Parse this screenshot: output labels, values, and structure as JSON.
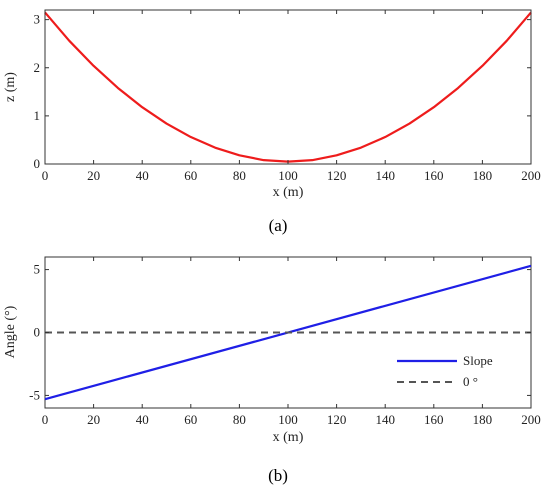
{
  "chart_data": [
    {
      "type": "line",
      "caption": "(a)",
      "xlabel": "x (m)",
      "ylabel": "z (m)",
      "xlim": [
        0,
        200
      ],
      "ylim": [
        0,
        3.2
      ],
      "x_ticks": [
        0,
        20,
        40,
        60,
        80,
        100,
        120,
        140,
        160,
        180,
        200
      ],
      "y_ticks": [
        0,
        1,
        2,
        3
      ],
      "grid": false,
      "series": [
        {
          "color": "#ee1c1c",
          "style": "solid",
          "x": [
            0,
            10,
            20,
            30,
            40,
            50,
            60,
            70,
            80,
            90,
            100,
            110,
            120,
            130,
            140,
            150,
            160,
            170,
            180,
            190,
            200
          ],
          "y": [
            3.15,
            2.56,
            2.04,
            1.58,
            1.18,
            0.84,
            0.56,
            0.34,
            0.18,
            0.08,
            0.05,
            0.08,
            0.18,
            0.34,
            0.56,
            0.84,
            1.18,
            1.58,
            2.04,
            2.56,
            3.15
          ]
        }
      ]
    },
    {
      "type": "line",
      "caption": "(b)",
      "xlabel": "x (m)",
      "ylabel": "Angle (°)",
      "xlim": [
        0,
        200
      ],
      "ylim": [
        -6,
        6
      ],
      "x_ticks": [
        0,
        20,
        40,
        60,
        80,
        100,
        120,
        140,
        160,
        180,
        200
      ],
      "y_ticks": [
        -5,
        0,
        5
      ],
      "grid": false,
      "legend_position": "lower-right",
      "series": [
        {
          "name": "Slope",
          "color": "#1f1fe6",
          "style": "solid",
          "x": [
            0,
            200
          ],
          "y": [
            -5.3,
            5.3
          ]
        },
        {
          "name": "0 °",
          "color": "#555555",
          "style": "dashed",
          "x": [
            0,
            200
          ],
          "y": [
            0,
            0
          ]
        }
      ]
    }
  ]
}
